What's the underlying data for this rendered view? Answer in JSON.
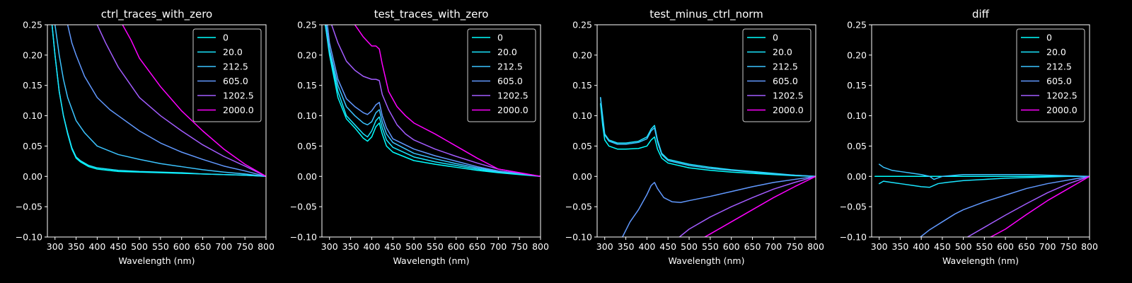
{
  "chart_data": [
    {
      "type": "line",
      "title": "ctrl_traces_with_zero",
      "xlabel": "Wavelength (nm)",
      "ylabel": "",
      "xlim": [
        282,
        800
      ],
      "ylim": [
        -0.1,
        0.25
      ],
      "xticks": [
        300,
        350,
        400,
        450,
        500,
        550,
        600,
        650,
        700,
        750,
        800
      ],
      "yticks": [
        -0.1,
        -0.05,
        0.0,
        0.05,
        0.1,
        0.15,
        0.2,
        0.25
      ],
      "xtick_labels": [
        "300",
        "350",
        "400",
        "450",
        "500",
        "550",
        "600",
        "650",
        "700",
        "750",
        "800"
      ],
      "ytick_labels": [
        "−0.10",
        "−0.05",
        "0.00",
        "0.05",
        "0.10",
        "0.15",
        "0.20",
        "0.25"
      ],
      "legend_position": "top-right",
      "series": [
        {
          "name": "0",
          "color": "#00ffff",
          "x": [
            293,
            300,
            310,
            320,
            330,
            340,
            350,
            360,
            380,
            400,
            450,
            500,
            550,
            600,
            650,
            700,
            750,
            800
          ],
          "y": [
            0.25,
            0.2,
            0.14,
            0.1,
            0.07,
            0.045,
            0.03,
            0.024,
            0.016,
            0.012,
            0.008,
            0.007,
            0.006,
            0.005,
            0.004,
            0.003,
            0.002,
            0.0
          ]
        },
        {
          "name": "20.0",
          "color": "#1ae5ff",
          "x": [
            293,
            300,
            310,
            320,
            330,
            340,
            350,
            360,
            380,
            400,
            450,
            500,
            550,
            600,
            650,
            700,
            750,
            800
          ],
          "y": [
            0.25,
            0.2,
            0.14,
            0.1,
            0.072,
            0.047,
            0.032,
            0.026,
            0.018,
            0.014,
            0.01,
            0.008,
            0.007,
            0.006,
            0.004,
            0.003,
            0.002,
            0.0
          ]
        },
        {
          "name": "212.5",
          "color": "#3bc4ff",
          "x": [
            300,
            310,
            320,
            330,
            350,
            370,
            400,
            450,
            500,
            550,
            600,
            650,
            700,
            750,
            800
          ],
          "y": [
            0.25,
            0.2,
            0.16,
            0.13,
            0.092,
            0.072,
            0.05,
            0.036,
            0.028,
            0.021,
            0.016,
            0.011,
            0.007,
            0.004,
            0.0
          ]
        },
        {
          "name": "605.0",
          "color": "#6199ff",
          "x": [
            330,
            340,
            350,
            370,
            400,
            430,
            450,
            500,
            550,
            600,
            650,
            700,
            750,
            800
          ],
          "y": [
            0.25,
            0.22,
            0.2,
            0.165,
            0.13,
            0.11,
            0.1,
            0.075,
            0.055,
            0.04,
            0.028,
            0.017,
            0.009,
            0.0
          ]
        },
        {
          "name": "1202.5",
          "color": "#a35cff",
          "x": [
            400,
            420,
            450,
            480,
            500,
            550,
            600,
            650,
            700,
            750,
            800
          ],
          "y": [
            0.25,
            0.22,
            0.18,
            0.15,
            0.13,
            0.1,
            0.075,
            0.052,
            0.033,
            0.017,
            0.0
          ]
        },
        {
          "name": "2000.0",
          "color": "#ff00ff",
          "x": [
            460,
            480,
            500,
            550,
            600,
            650,
            700,
            750,
            800
          ],
          "y": [
            0.25,
            0.225,
            0.195,
            0.148,
            0.108,
            0.075,
            0.045,
            0.02,
            0.0
          ]
        }
      ]
    },
    {
      "type": "line",
      "title": "test_traces_with_zero",
      "xlabel": "Wavelength (nm)",
      "ylabel": "",
      "xlim": [
        282,
        800
      ],
      "ylim": [
        -0.1,
        0.25
      ],
      "xticks": [
        300,
        350,
        400,
        450,
        500,
        550,
        600,
        650,
        700,
        750,
        800
      ],
      "yticks": [
        -0.1,
        -0.05,
        0.0,
        0.05,
        0.1,
        0.15,
        0.2,
        0.25
      ],
      "xtick_labels": [
        "300",
        "350",
        "400",
        "450",
        "500",
        "550",
        "600",
        "650",
        "700",
        "750",
        "800"
      ],
      "ytick_labels": [
        "−0.10",
        "−0.05",
        "0.00",
        "0.05",
        "0.10",
        "0.15",
        "0.20",
        "0.25"
      ],
      "legend_position": "top-right",
      "series": [
        {
          "name": "0",
          "color": "#00ffff",
          "x": [
            290,
            300,
            320,
            340,
            360,
            380,
            390,
            400,
            410,
            418,
            425,
            435,
            450,
            500,
            550,
            600,
            650,
            700,
            750,
            800
          ],
          "y": [
            0.25,
            0.2,
            0.13,
            0.095,
            0.08,
            0.063,
            0.058,
            0.065,
            0.082,
            0.088,
            0.07,
            0.05,
            0.04,
            0.026,
            0.02,
            0.015,
            0.01,
            0.006,
            0.003,
            0.0
          ]
        },
        {
          "name": "20.0",
          "color": "#1ae5ff",
          "x": [
            290,
            300,
            320,
            340,
            360,
            380,
            390,
            400,
            410,
            418,
            425,
            435,
            450,
            500,
            550,
            600,
            650,
            700,
            750,
            800
          ],
          "y": [
            0.25,
            0.205,
            0.14,
            0.1,
            0.085,
            0.07,
            0.065,
            0.075,
            0.092,
            0.098,
            0.08,
            0.06,
            0.048,
            0.032,
            0.024,
            0.018,
            0.012,
            0.007,
            0.004,
            0.0
          ]
        },
        {
          "name": "212.5",
          "color": "#3bc4ff",
          "x": [
            292,
            300,
            320,
            340,
            360,
            380,
            390,
            400,
            410,
            418,
            425,
            435,
            450,
            500,
            550,
            600,
            650,
            700,
            750,
            800
          ],
          "y": [
            0.25,
            0.21,
            0.15,
            0.115,
            0.1,
            0.088,
            0.085,
            0.09,
            0.105,
            0.11,
            0.09,
            0.07,
            0.056,
            0.038,
            0.029,
            0.021,
            0.014,
            0.008,
            0.005,
            0.0
          ]
        },
        {
          "name": "605.0",
          "color": "#6199ff",
          "x": [
            295,
            300,
            320,
            340,
            360,
            380,
            390,
            400,
            410,
            418,
            425,
            435,
            450,
            500,
            550,
            600,
            650,
            700,
            750,
            800
          ],
          "y": [
            0.25,
            0.22,
            0.16,
            0.128,
            0.115,
            0.105,
            0.102,
            0.108,
            0.118,
            0.122,
            0.1,
            0.08,
            0.062,
            0.045,
            0.034,
            0.025,
            0.016,
            0.009,
            0.005,
            0.0
          ]
        },
        {
          "name": "1202.5",
          "color": "#a35cff",
          "x": [
            305,
            320,
            340,
            360,
            380,
            400,
            410,
            418,
            425,
            440,
            460,
            480,
            500,
            550,
            600,
            650,
            700,
            750,
            800
          ],
          "y": [
            0.25,
            0.22,
            0.19,
            0.175,
            0.165,
            0.16,
            0.16,
            0.158,
            0.135,
            0.11,
            0.085,
            0.07,
            0.06,
            0.045,
            0.033,
            0.022,
            0.012,
            0.006,
            0.0
          ]
        },
        {
          "name": "2000.0",
          "color": "#ff00ff",
          "x": [
            360,
            380,
            400,
            410,
            418,
            425,
            440,
            460,
            480,
            500,
            550,
            600,
            650,
            700,
            750,
            800
          ],
          "y": [
            0.25,
            0.23,
            0.215,
            0.215,
            0.21,
            0.185,
            0.14,
            0.115,
            0.1,
            0.088,
            0.07,
            0.05,
            0.03,
            0.012,
            0.006,
            0.0
          ]
        }
      ]
    },
    {
      "type": "line",
      "title": "test_minus_ctrl_norm",
      "xlabel": "Wavelength (nm)",
      "ylabel": "",
      "xlim": [
        282,
        800
      ],
      "ylim": [
        -0.1,
        0.25
      ],
      "xticks": [
        300,
        350,
        400,
        450,
        500,
        550,
        600,
        650,
        700,
        750,
        800
      ],
      "yticks": [
        -0.1,
        -0.05,
        0.0,
        0.05,
        0.1,
        0.15,
        0.2,
        0.25
      ],
      "xtick_labels": [
        "300",
        "350",
        "400",
        "450",
        "500",
        "550",
        "600",
        "650",
        "700",
        "750",
        "800"
      ],
      "ytick_labels": [
        "−0.10",
        "−0.05",
        "0.00",
        "0.05",
        "0.10",
        "0.15",
        "0.20",
        "0.25"
      ],
      "legend_position": "top-right",
      "series": [
        {
          "name": "0",
          "color": "#00ffff",
          "x": [
            290,
            295,
            300,
            310,
            330,
            350,
            380,
            400,
            410,
            418,
            425,
            435,
            450,
            500,
            550,
            600,
            650,
            700,
            750,
            800
          ],
          "y": [
            0.12,
            0.085,
            0.06,
            0.05,
            0.045,
            0.045,
            0.046,
            0.05,
            0.06,
            0.065,
            0.045,
            0.03,
            0.022,
            0.014,
            0.01,
            0.007,
            0.005,
            0.003,
            0.001,
            0.0
          ]
        },
        {
          "name": "20.0",
          "color": "#1ae5ff",
          "x": [
            290,
            295,
            300,
            310,
            330,
            350,
            380,
            400,
            410,
            418,
            425,
            435,
            450,
            500,
            550,
            600,
            650,
            700,
            750,
            800
          ],
          "y": [
            0.13,
            0.1,
            0.07,
            0.06,
            0.055,
            0.055,
            0.058,
            0.065,
            0.078,
            0.084,
            0.06,
            0.038,
            0.028,
            0.02,
            0.015,
            0.011,
            0.008,
            0.005,
            0.002,
            0.0
          ]
        },
        {
          "name": "212.5",
          "color": "#3bc4ff",
          "x": [
            290,
            295,
            300,
            310,
            330,
            350,
            380,
            400,
            410,
            418,
            425,
            435,
            450,
            500,
            550,
            600,
            650,
            700,
            750,
            800
          ],
          "y": [
            0.13,
            0.095,
            0.068,
            0.058,
            0.053,
            0.053,
            0.056,
            0.062,
            0.075,
            0.08,
            0.057,
            0.036,
            0.026,
            0.018,
            0.013,
            0.01,
            0.007,
            0.004,
            0.002,
            0.0
          ]
        },
        {
          "name": "605.0",
          "color": "#6199ff",
          "x": [
            342,
            360,
            380,
            400,
            410,
            418,
            425,
            440,
            460,
            480,
            500,
            550,
            600,
            650,
            700,
            750,
            800
          ],
          "y": [
            -0.1,
            -0.075,
            -0.055,
            -0.03,
            -0.015,
            -0.01,
            -0.02,
            -0.035,
            -0.042,
            -0.043,
            -0.04,
            -0.033,
            -0.025,
            -0.017,
            -0.01,
            -0.005,
            0.0
          ]
        },
        {
          "name": "1202.5",
          "color": "#a35cff",
          "x": [
            477,
            500,
            550,
            600,
            650,
            700,
            750,
            800
          ],
          "y": [
            -0.1,
            -0.087,
            -0.067,
            -0.05,
            -0.035,
            -0.021,
            -0.01,
            0.0
          ]
        },
        {
          "name": "2000.0",
          "color": "#ff00ff",
          "x": [
            537,
            550,
            600,
            650,
            700,
            750,
            800
          ],
          "y": [
            -0.1,
            -0.095,
            -0.075,
            -0.055,
            -0.035,
            -0.017,
            0.0
          ]
        }
      ]
    },
    {
      "type": "line",
      "title": "diff",
      "xlabel": "Wavelength (nm)",
      "ylabel": "",
      "xlim": [
        282,
        800
      ],
      "ylim": [
        -0.1,
        0.25
      ],
      "xticks": [
        300,
        350,
        400,
        450,
        500,
        550,
        600,
        650,
        700,
        750,
        800
      ],
      "yticks": [
        -0.1,
        -0.05,
        0.0,
        0.05,
        0.1,
        0.15,
        0.2,
        0.25
      ],
      "xtick_labels": [
        "300",
        "350",
        "400",
        "450",
        "500",
        "550",
        "600",
        "650",
        "700",
        "750",
        "800"
      ],
      "ytick_labels": [
        "−0.10",
        "−0.05",
        "0.00",
        "0.05",
        "0.10",
        "0.15",
        "0.20",
        "0.25"
      ],
      "legend_position": "top-right",
      "series": [
        {
          "name": "0",
          "color": "#00ffff",
          "x": [
            290,
            400,
            500,
            600,
            700,
            800
          ],
          "y": [
            0.0,
            0.0,
            0.0,
            0.0,
            0.0,
            0.0
          ]
        },
        {
          "name": "20.0",
          "color": "#1ae5ff",
          "x": [
            300,
            310,
            330,
            350,
            380,
            400,
            420,
            440,
            460,
            500,
            550,
            600,
            650,
            700,
            750,
            800
          ],
          "y": [
            -0.012,
            -0.008,
            -0.01,
            -0.012,
            -0.015,
            -0.017,
            -0.018,
            -0.012,
            -0.01,
            -0.007,
            -0.005,
            -0.003,
            -0.002,
            -0.001,
            0.0,
            0.0
          ]
        },
        {
          "name": "212.5",
          "color": "#3bc4ff",
          "x": [
            300,
            310,
            330,
            350,
            380,
            400,
            420,
            430,
            450,
            500,
            550,
            600,
            650,
            700,
            750,
            800
          ],
          "y": [
            0.02,
            0.015,
            0.01,
            0.008,
            0.005,
            0.003,
            0.0,
            -0.005,
            0.0,
            0.003,
            0.003,
            0.003,
            0.003,
            0.002,
            0.001,
            0.0
          ]
        },
        {
          "name": "605.0",
          "color": "#6199ff",
          "x": [
            398,
            420,
            450,
            480,
            500,
            550,
            600,
            650,
            700,
            750,
            800
          ],
          "y": [
            -0.1,
            -0.088,
            -0.075,
            -0.062,
            -0.055,
            -0.042,
            -0.031,
            -0.02,
            -0.012,
            -0.006,
            0.0
          ]
        },
        {
          "name": "1202.5",
          "color": "#a35cff",
          "x": [
            510,
            550,
            600,
            650,
            700,
            750,
            800
          ],
          "y": [
            -0.1,
            -0.084,
            -0.064,
            -0.045,
            -0.027,
            -0.012,
            0.0
          ]
        },
        {
          "name": "2000.0",
          "color": "#ff00ff",
          "x": [
            565,
            600,
            650,
            700,
            750,
            800
          ],
          "y": [
            -0.1,
            -0.087,
            -0.063,
            -0.04,
            -0.02,
            0.0
          ]
        }
      ]
    }
  ]
}
